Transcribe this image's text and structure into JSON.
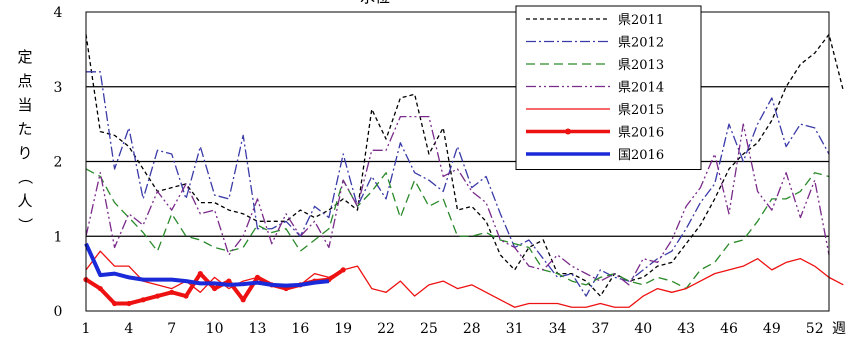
{
  "chart_data": {
    "type": "line",
    "title": "",
    "title_fragment": "水位",
    "ylabel": "定点当たり（人）",
    "xlabel": "週",
    "ylim": [
      0,
      4
    ],
    "xlim": [
      1,
      53
    ],
    "y_ticks": [
      "0",
      "1",
      "2",
      "3",
      "4"
    ],
    "x_ticks": [
      "1",
      "4",
      "7",
      "10",
      "13",
      "16",
      "19",
      "22",
      "25",
      "28",
      "31",
      "34",
      "37",
      "40",
      "43",
      "46",
      "49",
      "52"
    ],
    "x_tick_values": [
      1,
      4,
      7,
      10,
      13,
      16,
      19,
      22,
      25,
      28,
      31,
      34,
      37,
      40,
      43,
      46,
      49,
      52
    ],
    "grid": "horizontal",
    "legend_position": "top-right",
    "series": [
      {
        "name": "県2011",
        "color": "#000000",
        "dash": "4,3",
        "width": 1.3,
        "values": [
          3.7,
          2.4,
          2.35,
          2.2,
          1.9,
          1.6,
          1.65,
          1.7,
          1.45,
          1.45,
          1.35,
          1.3,
          1.2,
          1.2,
          1.2,
          1.35,
          1.25,
          1.35,
          1.5,
          1.35,
          2.7,
          2.3,
          2.85,
          2.9,
          2.1,
          2.45,
          1.35,
          1.4,
          1.2,
          0.75,
          0.55,
          0.85,
          0.95,
          0.5,
          0.5,
          0.4,
          0.2,
          0.5,
          0.4,
          0.45,
          0.6,
          0.65,
          0.9,
          1.15,
          1.5,
          1.9,
          2.1,
          2.25,
          2.55,
          3.0,
          3.3,
          3.45,
          3.7,
          2.95
        ]
      },
      {
        "name": "県2012",
        "color": "#3a3aa8",
        "dash": "10,3,2,3",
        "width": 1.3,
        "values": [
          3.2,
          3.2,
          1.9,
          2.45,
          1.5,
          2.15,
          2.1,
          1.5,
          2.2,
          1.55,
          1.5,
          2.35,
          1.1,
          1.1,
          1.2,
          1.0,
          1.4,
          1.25,
          2.1,
          1.4,
          1.8,
          1.5,
          2.25,
          1.85,
          1.75,
          1.6,
          2.2,
          1.65,
          1.8,
          1.3,
          0.85,
          0.95,
          0.7,
          0.45,
          0.5,
          0.2,
          0.55,
          0.45,
          0.4,
          0.55,
          0.7,
          0.8,
          1.1,
          1.45,
          1.7,
          2.5,
          2.0,
          2.5,
          2.85,
          2.2,
          2.5,
          2.45,
          2.1
        ]
      },
      {
        "name": "県2013",
        "color": "#2a8a2a",
        "dash": "9,5",
        "width": 1.3,
        "values": [
          1.9,
          1.8,
          1.45,
          1.25,
          1.05,
          0.8,
          1.3,
          1.0,
          0.95,
          0.85,
          0.8,
          0.85,
          1.15,
          1.05,
          1.1,
          0.8,
          0.95,
          1.1,
          1.75,
          1.4,
          1.6,
          1.85,
          1.25,
          1.75,
          1.4,
          1.5,
          1.0,
          1.0,
          1.05,
          0.95,
          0.9,
          0.85,
          0.55,
          0.5,
          0.4,
          0.35,
          0.45,
          0.5,
          0.4,
          0.35,
          0.45,
          0.4,
          0.3,
          0.55,
          0.65,
          0.9,
          0.95,
          1.2,
          1.5,
          1.5,
          1.6,
          1.85,
          1.8
        ]
      },
      {
        "name": "県2014",
        "color": "#7a2a8a",
        "dash": "10,3,2,3,2,3",
        "width": 1.3,
        "values": [
          1.0,
          1.85,
          0.85,
          1.3,
          1.15,
          1.6,
          1.35,
          1.7,
          1.3,
          1.35,
          0.75,
          1.0,
          1.5,
          0.9,
          1.3,
          1.0,
          1.2,
          0.85,
          1.75,
          1.4,
          2.15,
          2.15,
          2.6,
          2.6,
          2.6,
          1.8,
          1.9,
          1.6,
          1.45,
          0.95,
          0.85,
          0.6,
          0.55,
          0.75,
          0.6,
          0.5,
          0.4,
          0.5,
          0.35,
          0.7,
          0.65,
          0.95,
          1.4,
          1.65,
          2.1,
          1.3,
          2.5,
          1.6,
          1.35,
          1.85,
          1.25,
          1.75,
          0.75
        ]
      },
      {
        "name": "県2015",
        "color": "#ee1111",
        "dash": "",
        "width": 1.3,
        "values": [
          0.55,
          0.8,
          0.6,
          0.6,
          0.4,
          0.35,
          0.3,
          0.4,
          0.25,
          0.45,
          0.3,
          0.4,
          0.45,
          0.35,
          0.35,
          0.35,
          0.5,
          0.45,
          0.55,
          0.6,
          0.3,
          0.25,
          0.4,
          0.2,
          0.35,
          0.4,
          0.3,
          0.35,
          0.25,
          0.15,
          0.05,
          0.1,
          0.1,
          0.1,
          0.05,
          0.05,
          0.1,
          0.05,
          0.05,
          0.2,
          0.3,
          0.25,
          0.3,
          0.4,
          0.5,
          0.55,
          0.6,
          0.7,
          0.55,
          0.65,
          0.7,
          0.6,
          0.45,
          0.35
        ]
      },
      {
        "name": "県2016",
        "color": "#ee1111",
        "dash": "",
        "width": 4,
        "markers": true,
        "values": [
          0.42,
          0.3,
          0.1,
          0.1,
          0.15,
          0.2,
          0.25,
          0.2,
          0.5,
          0.3,
          0.4,
          0.15,
          0.45,
          0.35,
          0.3,
          0.35,
          0.4,
          0.42,
          0.55
        ]
      },
      {
        "name": "国2016",
        "color": "#1a2ad8",
        "dash": "",
        "width": 4,
        "values": [
          0.9,
          0.48,
          0.5,
          0.45,
          0.42,
          0.42,
          0.42,
          0.4,
          0.37,
          0.37,
          0.35,
          0.36,
          0.38,
          0.35,
          0.34,
          0.35,
          0.38,
          0.4
        ]
      }
    ]
  }
}
